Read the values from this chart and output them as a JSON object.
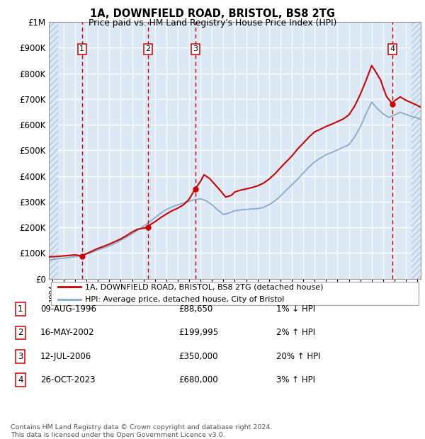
{
  "title": "1A, DOWNFIELD ROAD, BRISTOL, BS8 2TG",
  "subtitle": "Price paid vs. HM Land Registry's House Price Index (HPI)",
  "ylim": [
    0,
    1000000
  ],
  "yticks": [
    0,
    100000,
    200000,
    300000,
    400000,
    500000,
    600000,
    700000,
    800000,
    900000,
    1000000
  ],
  "ytick_labels": [
    "£0",
    "£100K",
    "£200K",
    "£300K",
    "£400K",
    "£500K",
    "£600K",
    "£700K",
    "£800K",
    "£900K",
    "£1M"
  ],
  "xlim_start": 1993.7,
  "xlim_end": 2026.3,
  "hatch_left_end": 1994.5,
  "hatch_right_start": 2025.5,
  "transactions": [
    {
      "num": 1,
      "date": "09-AUG-1996",
      "price": 88650,
      "year": 1996.6,
      "hpi_change": "1% ↓ HPI"
    },
    {
      "num": 2,
      "date": "16-MAY-2002",
      "price": 199995,
      "year": 2002.37,
      "hpi_change": "2% ↑ HPI"
    },
    {
      "num": 3,
      "date": "12-JUL-2006",
      "price": 350000,
      "year": 2006.53,
      "hpi_change": "20% ↑ HPI"
    },
    {
      "num": 4,
      "date": "26-OCT-2023",
      "price": 680000,
      "year": 2023.82,
      "hpi_change": "3% ↑ HPI"
    }
  ],
  "property_line_color": "#cc0000",
  "hpi_line_color": "#88aacc",
  "plot_bg": "#dce8f5",
  "grid_color": "#ffffff",
  "legend_label_property": "1A, DOWNFIELD ROAD, BRISTOL, BS8 2TG (detached house)",
  "legend_label_hpi": "HPI: Average price, detached house, City of Bristol",
  "footer": "Contains HM Land Registry data © Crown copyright and database right 2024.\nThis data is licensed under the Open Government Licence v3.0.",
  "property_years": [
    1993.7,
    1994.0,
    1994.5,
    1995.0,
    1995.5,
    1996.0,
    1996.6,
    1997.0,
    1997.5,
    1998.0,
    1998.5,
    1999.0,
    1999.5,
    2000.0,
    2000.5,
    2001.0,
    2001.5,
    2002.37,
    2002.5,
    2003.0,
    2003.5,
    2004.0,
    2004.5,
    2005.0,
    2005.5,
    2006.0,
    2006.53,
    2007.0,
    2007.3,
    2007.8,
    2008.3,
    2008.8,
    2009.2,
    2009.7,
    2010.0,
    2010.5,
    2011.0,
    2011.5,
    2012.0,
    2012.5,
    2013.0,
    2013.5,
    2014.0,
    2014.5,
    2015.0,
    2015.5,
    2016.0,
    2016.5,
    2017.0,
    2017.5,
    2018.0,
    2018.5,
    2019.0,
    2019.5,
    2020.0,
    2020.5,
    2021.0,
    2021.5,
    2022.0,
    2022.3,
    2022.8,
    2023.0,
    2023.3,
    2023.82,
    2024.0,
    2024.5,
    2025.0,
    2025.5,
    2026.0,
    2026.3
  ],
  "property_values": [
    85000,
    86000,
    87000,
    89000,
    91000,
    93000,
    88650,
    98000,
    108000,
    118000,
    126000,
    135000,
    145000,
    155000,
    168000,
    182000,
    193000,
    199995,
    208000,
    222000,
    238000,
    252000,
    265000,
    275000,
    288000,
    310000,
    350000,
    380000,
    405000,
    390000,
    365000,
    340000,
    318000,
    325000,
    338000,
    345000,
    350000,
    355000,
    362000,
    372000,
    388000,
    408000,
    432000,
    455000,
    478000,
    505000,
    528000,
    552000,
    572000,
    582000,
    593000,
    602000,
    612000,
    622000,
    638000,
    672000,
    718000,
    772000,
    830000,
    810000,
    772000,
    745000,
    710000,
    680000,
    693000,
    708000,
    695000,
    685000,
    675000,
    668000
  ],
  "hpi_years": [
    1993.7,
    1994.0,
    1994.5,
    1995.0,
    1995.5,
    1996.0,
    1996.5,
    1997.0,
    1997.5,
    1998.0,
    1998.5,
    1999.0,
    1999.5,
    2000.0,
    2000.5,
    2001.0,
    2001.5,
    2002.0,
    2002.5,
    2003.0,
    2003.5,
    2004.0,
    2004.5,
    2005.0,
    2005.5,
    2006.0,
    2006.5,
    2007.0,
    2007.5,
    2008.0,
    2008.5,
    2009.0,
    2009.5,
    2010.0,
    2010.5,
    2011.0,
    2011.5,
    2012.0,
    2012.5,
    2013.0,
    2013.5,
    2014.0,
    2014.5,
    2015.0,
    2015.5,
    2016.0,
    2016.5,
    2017.0,
    2017.5,
    2018.0,
    2018.5,
    2019.0,
    2019.5,
    2020.0,
    2020.5,
    2021.0,
    2021.5,
    2022.0,
    2022.5,
    2023.0,
    2023.5,
    2024.0,
    2024.5,
    2025.0,
    2025.5,
    2026.0,
    2026.3
  ],
  "hpi_values": [
    72000,
    75000,
    78000,
    80000,
    83000,
    86000,
    90000,
    96000,
    103000,
    112000,
    120000,
    128000,
    138000,
    150000,
    162000,
    175000,
    190000,
    205000,
    220000,
    238000,
    255000,
    270000,
    280000,
    288000,
    295000,
    302000,
    308000,
    312000,
    303000,
    288000,
    268000,
    250000,
    256000,
    265000,
    268000,
    270000,
    272000,
    273000,
    278000,
    288000,
    303000,
    322000,
    345000,
    366000,
    388000,
    412000,
    435000,
    455000,
    470000,
    483000,
    492000,
    502000,
    512000,
    522000,
    552000,
    592000,
    642000,
    688000,
    662000,
    642000,
    628000,
    638000,
    648000,
    640000,
    632000,
    626000,
    620000
  ]
}
